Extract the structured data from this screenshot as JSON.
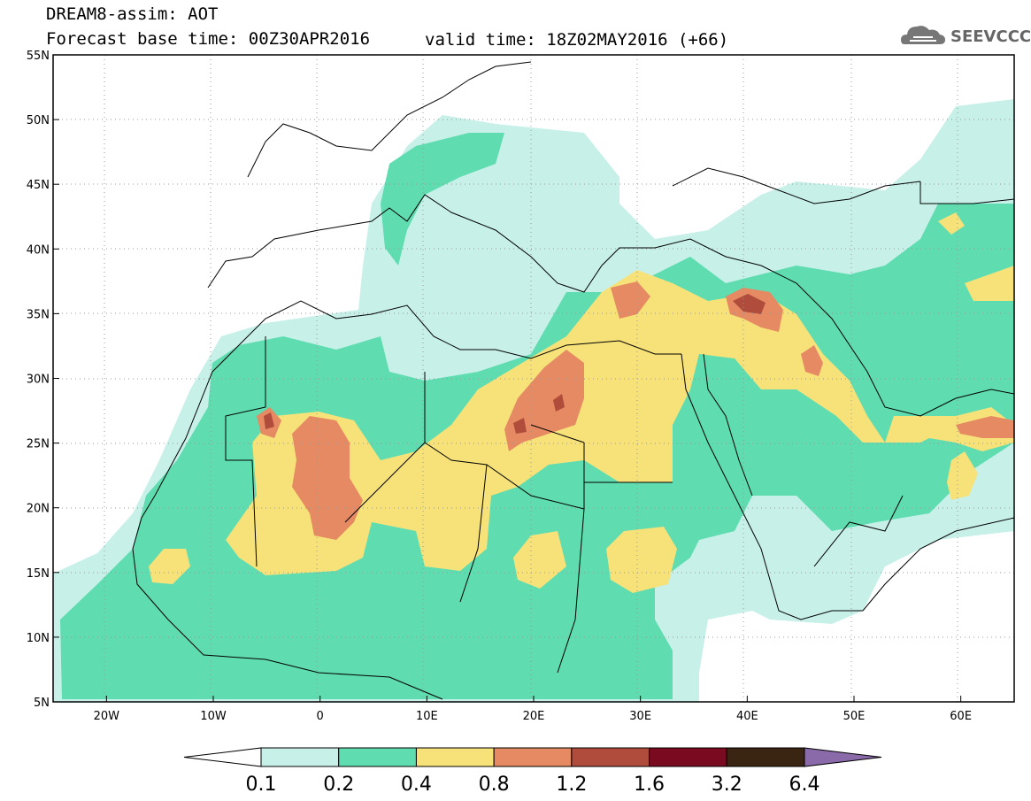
{
  "header": {
    "title": "DREAM8-assim: AOT",
    "base_time": "Forecast base time: 00Z30APR2016",
    "valid_time": "valid time: 18Z02MAY2016 (+66)"
  },
  "logo": {
    "text": "SEEVCCC",
    "icon": "cloud-icon"
  },
  "map": {
    "lon_range": [
      -25,
      65
    ],
    "lat_range": [
      5,
      55
    ],
    "lon_ticks": [
      "20W",
      "10W",
      "0",
      "10E",
      "20E",
      "30E",
      "40E",
      "50E",
      "60E"
    ],
    "lat_ticks": [
      "55N",
      "50N",
      "45N",
      "40N",
      "35N",
      "30N",
      "25N",
      "20N",
      "15N",
      "10N",
      "5N"
    ]
  },
  "colorbar": {
    "labels": [
      "0.1",
      "0.2",
      "0.4",
      "0.8",
      "1.2",
      "1.6",
      "3.2",
      "6.4"
    ],
    "colors": [
      "#ffffff",
      "#c7f0e8",
      "#5fdcb0",
      "#f7e27a",
      "#e58a62",
      "#b04c3c",
      "#7a0a20",
      "#3a2412",
      "#8a6aa8"
    ]
  }
}
